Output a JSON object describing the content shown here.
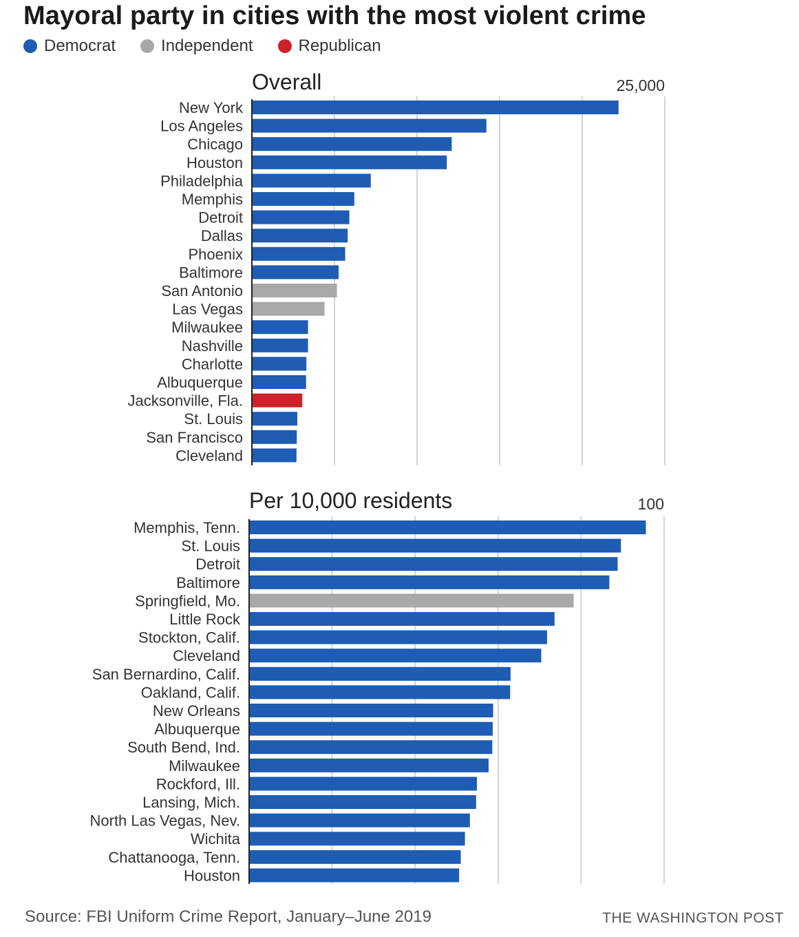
{
  "title": "Mayoral party in cities with the most violent crime",
  "legend": [
    {
      "label": "Democrat",
      "party": "dem",
      "color": "#1f5cb3"
    },
    {
      "label": "Independent",
      "party": "ind",
      "color": "#a8a8a8"
    },
    {
      "label": "Republican",
      "party": "rep",
      "color": "#cc2229"
    }
  ],
  "colors": {
    "dem": "#1f5cb3",
    "ind": "#a8a8a8",
    "rep": "#cc2229",
    "grid": "#d4d4d4",
    "axis": "#222222"
  },
  "chart_data": [
    {
      "type": "bar",
      "orientation": "horizontal",
      "title": "Overall",
      "xlim": [
        0,
        25000
      ],
      "gridlines": [
        5000,
        10000,
        15000,
        20000,
        25000
      ],
      "tick_label": {
        "value": 25000,
        "text": "25,000"
      },
      "categories": [
        "New York",
        "Los Angeles",
        "Chicago",
        "Houston",
        "Philadelphia",
        "Memphis",
        "Detroit",
        "Dallas",
        "Phoenix",
        "Baltimore",
        "San Antonio",
        "Las Vegas",
        "Milwaukee",
        "Nashville",
        "Charlotte",
        "Albuquerque",
        "Jacksonville, Fla.",
        "St. Louis",
        "San Francisco",
        "Cleveland"
      ],
      "values": [
        22200,
        14200,
        12100,
        11800,
        7200,
        6200,
        5900,
        5800,
        5650,
        5250,
        5150,
        4400,
        3400,
        3400,
        3300,
        3280,
        3050,
        2750,
        2720,
        2700
      ],
      "party": [
        "dem",
        "dem",
        "dem",
        "dem",
        "dem",
        "dem",
        "dem",
        "dem",
        "dem",
        "dem",
        "ind",
        "ind",
        "dem",
        "dem",
        "dem",
        "dem",
        "rep",
        "dem",
        "dem",
        "dem"
      ]
    },
    {
      "type": "bar",
      "orientation": "horizontal",
      "title": "Per 10,000 residents",
      "xlim": [
        0,
        100
      ],
      "gridlines": [
        20,
        40,
        60,
        80,
        100
      ],
      "tick_label": {
        "value": 100,
        "text": "100"
      },
      "categories": [
        "Memphis, Tenn.",
        "St. Louis",
        "Detroit",
        "Baltimore",
        "Springfield, Mo.",
        "Little Rock",
        "Stockton, Calif.",
        "Cleveland",
        "San Bernardino, Calif.",
        "Oakland, Calif.",
        "New Orleans",
        "Albuquerque",
        "South Bend, Ind.",
        "Milwaukee",
        "Rockford, Ill.",
        "Lansing, Mich.",
        "North Las Vegas, Nev.",
        "Wichita",
        "Chattanooga, Tenn.",
        "Houston"
      ],
      "values": [
        95.6,
        89.6,
        88.8,
        86.8,
        78.2,
        73.6,
        71.8,
        70.4,
        63.0,
        62.9,
        58.8,
        58.7,
        58.6,
        57.7,
        54.9,
        54.7,
        53.2,
        52.0,
        51.0,
        50.6
      ],
      "party": [
        "dem",
        "dem",
        "dem",
        "dem",
        "ind",
        "dem",
        "dem",
        "dem",
        "dem",
        "dem",
        "dem",
        "dem",
        "dem",
        "dem",
        "dem",
        "dem",
        "dem",
        "dem",
        "dem",
        "dem"
      ]
    }
  ],
  "footer": {
    "source": "Source: FBI Uniform Crime Report, January–June 2019",
    "brand": "THE WASHINGTON POST"
  }
}
